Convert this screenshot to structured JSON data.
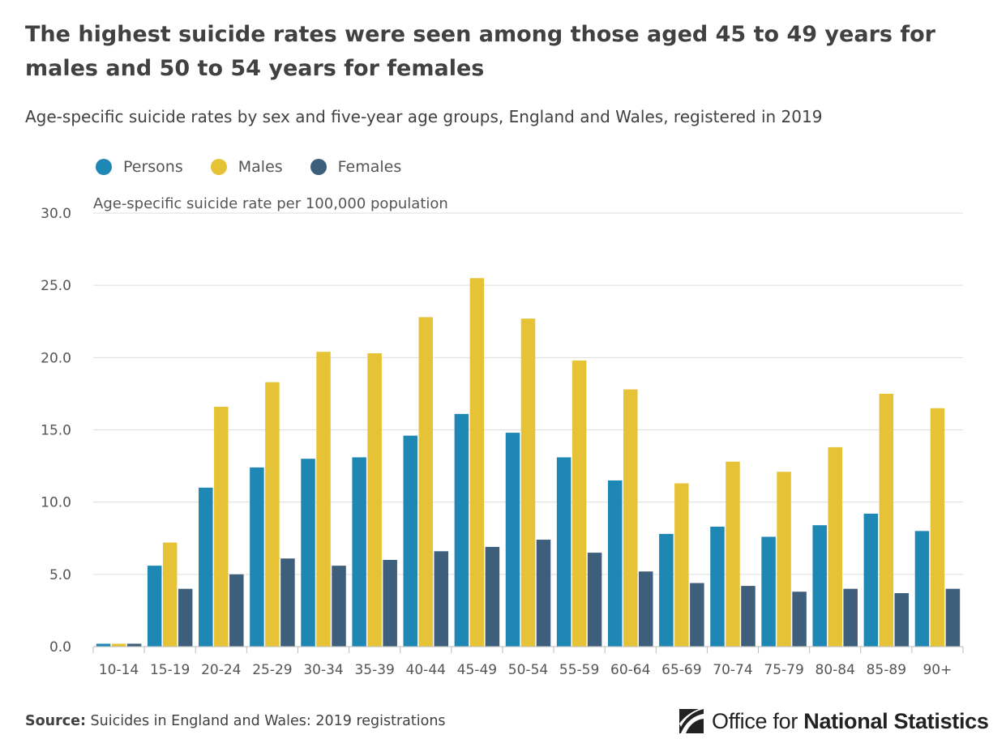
{
  "chart_data": {
    "type": "bar",
    "title": "The highest suicide rates were seen among those aged 45 to 49 years for males and 50 to 54 years for females",
    "subtitle": "Age-specific suicide rates by sex and five-year age groups, England and Wales, registered in 2019",
    "ylabel": "Age-specific suicide rate per 100,000 population",
    "xlabel": "",
    "ylim": [
      0,
      30
    ],
    "yticks": [
      "0.0",
      "5.0",
      "10.0",
      "15.0",
      "20.0",
      "25.0",
      "30.0"
    ],
    "grid": true,
    "legend_position": "top-left",
    "categories": [
      "10-14",
      "15-19",
      "20-24",
      "25-29",
      "30-34",
      "35-39",
      "40-44",
      "45-49",
      "50-54",
      "55-59",
      "60-64",
      "65-69",
      "70-74",
      "75-79",
      "80-84",
      "85-89",
      "90+"
    ],
    "series": [
      {
        "name": "Persons",
        "color": "#1f87b4",
        "values": [
          0.2,
          5.6,
          11.0,
          12.4,
          13.0,
          13.1,
          14.6,
          16.1,
          14.8,
          13.1,
          11.5,
          7.8,
          8.3,
          7.6,
          8.4,
          9.2,
          8.0
        ]
      },
      {
        "name": "Males",
        "color": "#e6c336",
        "values": [
          0.2,
          7.2,
          16.6,
          18.3,
          20.4,
          20.3,
          22.8,
          25.5,
          22.7,
          19.8,
          17.8,
          11.3,
          12.8,
          12.1,
          13.8,
          17.5,
          16.5
        ]
      },
      {
        "name": "Females",
        "color": "#3e5f7c",
        "values": [
          0.2,
          4.0,
          5.0,
          6.1,
          5.6,
          6.0,
          6.6,
          6.9,
          7.4,
          6.5,
          5.2,
          4.4,
          4.2,
          3.8,
          4.0,
          3.7,
          4.0
        ]
      }
    ]
  },
  "source": {
    "label": "Source:",
    "text": " Suicides in England and Wales: 2019 registrations"
  },
  "logo": {
    "text_light": "Office for ",
    "text_bold": "National Statistics",
    "icon": "ons-logo-icon"
  }
}
